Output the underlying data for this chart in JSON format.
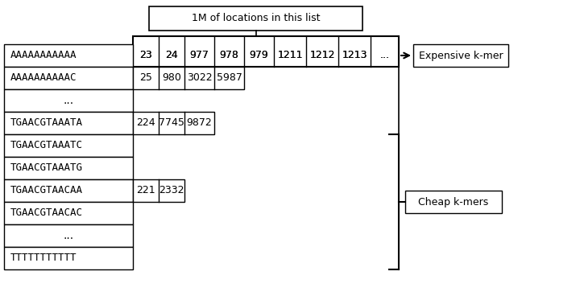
{
  "background_color": "#ffffff",
  "rows": [
    {
      "kmer": "AAAAAAAAAAA",
      "values": [
        "23",
        "24",
        "977",
        "978",
        "979",
        "1211",
        "1212",
        "1213",
        "..."
      ],
      "type": "expensive"
    },
    {
      "kmer": "AAAAAAAAAAC",
      "values": [
        "25",
        "980",
        "3022",
        "5987"
      ],
      "type": "normal"
    },
    {
      "kmer": "...",
      "values": [],
      "type": "dots"
    },
    {
      "kmer": "TGAACGTAAATA",
      "values": [
        "224",
        "7745",
        "9872"
      ],
      "type": "normal"
    },
    {
      "kmer": "TGAACGTAAATC",
      "values": [],
      "type": "cheap"
    },
    {
      "kmer": "TGAACGTAAATG",
      "values": [],
      "type": "cheap"
    },
    {
      "kmer": "TGAACGTAACAA",
      "values": [
        "221",
        "2332"
      ],
      "type": "normal"
    },
    {
      "kmer": "TGAACGTAACAC",
      "values": [],
      "type": "cheap"
    },
    {
      "kmer": "...",
      "values": [],
      "type": "dots2"
    },
    {
      "kmer": "TTTTTTTTTTT",
      "values": [],
      "type": "cheap"
    }
  ],
  "callout_text": "1M of locations in this list",
  "expensive_label": "Expensive k-mer",
  "cheap_label": "Cheap k-mers",
  "font_size": 9,
  "kmer_font_size": 9,
  "val_font_size": 9
}
